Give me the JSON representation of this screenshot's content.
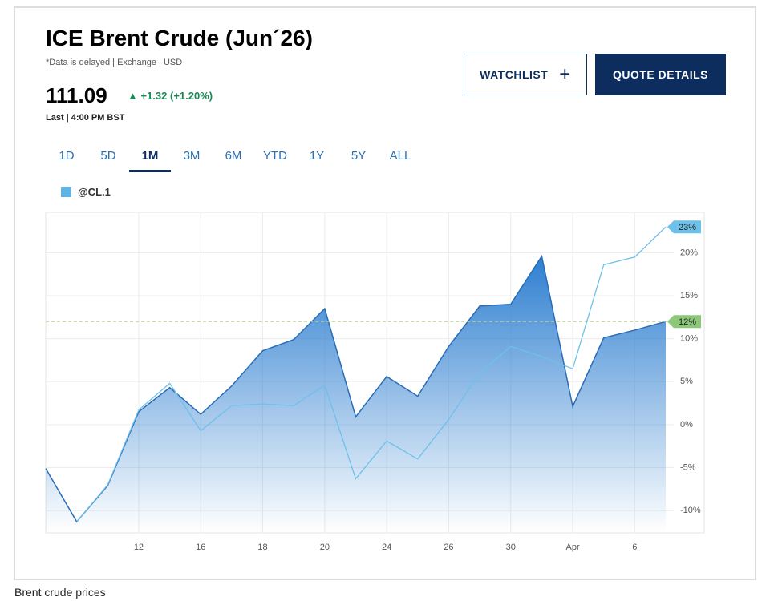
{
  "header": {
    "title": "ICE Brent Crude (Jun´26)",
    "note": "*Data is delayed | Exchange | USD",
    "price": "111.09",
    "change": "▲ +1.32 (+1.20%)",
    "last": "Last | 4:00 PM BST"
  },
  "buttons": {
    "watchlist": "WATCHLIST",
    "watchlist_icon": "+",
    "quote": "QUOTE DETAILS"
  },
  "tabs": [
    "1D",
    "5D",
    "1M",
    "3M",
    "6M",
    "YTD",
    "1Y",
    "5Y",
    "ALL"
  ],
  "active_tab": 2,
  "caption": "Brent crude prices",
  "chart_data": {
    "type": "area",
    "categories": [
      null,
      null,
      null,
      "12",
      null,
      "16",
      null,
      "18",
      null,
      "20",
      null,
      "24",
      null,
      "26",
      null,
      "30",
      null,
      "Apr",
      null,
      "6",
      null
    ],
    "series": [
      {
        "name": "@CL.1",
        "color": "#2a6cb5",
        "values": [
          -5.1,
          -11.3,
          -7.1,
          1.5,
          4.3,
          1.2,
          4.5,
          8.6,
          9.9,
          13.5,
          0.9,
          5.6,
          3.3,
          9.1,
          13.8,
          14.0,
          19.6,
          2.1,
          10.1,
          11.0,
          12
        ],
        "value_labels": [
          null,
          null,
          null,
          null,
          null,
          null,
          null,
          null,
          null,
          null,
          null,
          null,
          null,
          null,
          null,
          null,
          null,
          null,
          null,
          null,
          "12%"
        ]
      },
      {
        "color": "#6ec1ea",
        "values": [
          null,
          -11.3,
          -7.0,
          1.7,
          4.8,
          -0.7,
          2.2,
          2.4,
          2.2,
          4.6,
          -6.3,
          -1.9,
          -4.0,
          0.6,
          6.0,
          9.1,
          7.9,
          6.5,
          18.6,
          19.5,
          23
        ],
        "value_labels": [
          null,
          null,
          null,
          null,
          null,
          null,
          null,
          null,
          null,
          null,
          null,
          null,
          null,
          null,
          null,
          null,
          null,
          null,
          null,
          null,
          "23%"
        ]
      }
    ],
    "ylim": [
      -12.6,
      24.7
    ],
    "yticks": [
      {
        "value": -10,
        "label": "-10%"
      },
      {
        "value": -5,
        "label": "-5%"
      },
      {
        "value": 0,
        "label": "0%"
      },
      {
        "value": 5,
        "label": "5%"
      },
      {
        "value": 10,
        "label": "10%"
      },
      {
        "value": 15,
        "label": "15%"
      },
      {
        "value": 20,
        "label": "20%"
      }
    ],
    "grid": true
  }
}
